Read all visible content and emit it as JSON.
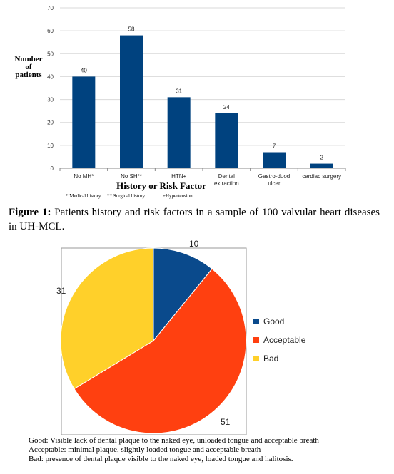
{
  "chart_data": [
    {
      "type": "bar",
      "categories": [
        "No MH*",
        "No SH**",
        "HTN+",
        "Dental extraction",
        "Gastro-duod ulcer",
        "cardiac surgery"
      ],
      "category_lines": [
        [
          "No MH*"
        ],
        [
          "No SH**"
        ],
        [
          "HTN+"
        ],
        [
          "Dental",
          "extraction"
        ],
        [
          "Gastro-duod",
          "ulcer"
        ],
        [
          "cardiac surgery"
        ]
      ],
      "values": [
        40,
        58,
        31,
        24,
        7,
        2
      ],
      "ylabel_lines": [
        "Number",
        "of",
        "patients"
      ],
      "xlabel": "History or Risk Factor",
      "ylim": [
        0,
        70
      ],
      "yticks": [
        0,
        10,
        20,
        30,
        40,
        50,
        60,
        70
      ],
      "bar_color": "#00427F",
      "data_labels": true,
      "footnotes": [
        "* Medical history",
        "** Surgical history",
        "+Hypertension"
      ]
    },
    {
      "type": "pie",
      "categories": [
        "Good",
        "Acceptable",
        "Bad"
      ],
      "values": [
        10,
        51,
        31
      ],
      "colors": [
        "#0A4A8C",
        "#FF4010",
        "#FFD02A"
      ],
      "legend_position": "right"
    }
  ],
  "figure1": {
    "label": "Figure 1:",
    "text": " Patients history and risk factors in a sample of 100 valvular heart diseases in UH-MCL."
  },
  "notes": {
    "good": "Good: Visible lack of dental plaque to the naked eye, unloaded tongue and acceptable breath",
    "acceptable": "Acceptable: minimal plaque, slightly loaded tongue and acceptable breath",
    "bad": "Bad: presence of dental plaque visible to the naked eye, loaded tongue and halitosis."
  }
}
